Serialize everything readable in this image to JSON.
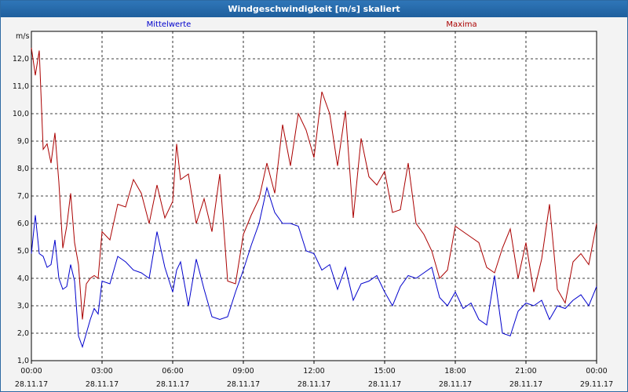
{
  "window": {
    "title": "Windgeschwindigkeit [m/s] skaliert"
  },
  "chart_data": {
    "type": "line",
    "ylabel": "m/s",
    "ylim": [
      1.0,
      13.0
    ],
    "yticks": [
      "1,0",
      "2,0",
      "3,0",
      "4,0",
      "5,0",
      "6,0",
      "7,0",
      "8,0",
      "9,0",
      "10,0",
      "11,0",
      "12,0"
    ],
    "xticks": [
      {
        "time": "00:00",
        "date": "28.11.17"
      },
      {
        "time": "03:00",
        "date": "28.11.17"
      },
      {
        "time": "06:00",
        "date": "28.11.17"
      },
      {
        "time": "09:00",
        "date": "28.11.17"
      },
      {
        "time": "12:00",
        "date": "28.11.17"
      },
      {
        "time": "15:00",
        "date": "28.11.17"
      },
      {
        "time": "18:00",
        "date": "28.11.17"
      },
      {
        "time": "21:00",
        "date": "28.11.17"
      },
      {
        "time": "00:00",
        "date": "29.11.17"
      }
    ],
    "grid": true,
    "x_start": "28.11.17 00:00",
    "x_end": "29.11.17 00:00",
    "series": [
      {
        "name": "Mittelwerte",
        "color": "#0000cc",
        "x": [
          "00:00",
          "00:10",
          "00:20",
          "00:30",
          "00:40",
          "00:50",
          "01:00",
          "01:10",
          "01:20",
          "01:30",
          "01:40",
          "01:50",
          "02:00",
          "02:10",
          "02:20",
          "02:30",
          "02:40",
          "02:50",
          "03:00",
          "03:20",
          "03:40",
          "04:00",
          "04:20",
          "04:40",
          "05:00",
          "05:20",
          "05:40",
          "06:00",
          "06:10",
          "06:20",
          "06:40",
          "07:00",
          "07:20",
          "07:40",
          "08:00",
          "08:20",
          "08:40",
          "09:00",
          "09:20",
          "09:40",
          "10:00",
          "10:20",
          "10:40",
          "11:00",
          "11:20",
          "11:40",
          "12:00",
          "12:20",
          "12:40",
          "13:00",
          "13:20",
          "13:40",
          "14:00",
          "14:20",
          "14:40",
          "15:00",
          "15:20",
          "15:40",
          "16:00",
          "16:20",
          "16:40",
          "17:00",
          "17:20",
          "17:40",
          "18:00",
          "18:20",
          "18:40",
          "19:00",
          "19:20",
          "19:40",
          "20:00",
          "20:20",
          "20:40",
          "21:00",
          "21:20",
          "21:40",
          "22:00",
          "22:20",
          "22:40",
          "23:00",
          "23:20",
          "23:40",
          "00:00"
        ],
        "values": [
          4.9,
          6.3,
          4.9,
          4.8,
          4.4,
          4.5,
          5.4,
          4.0,
          3.6,
          3.7,
          4.5,
          3.9,
          1.9,
          1.5,
          2.0,
          2.5,
          2.9,
          2.7,
          3.9,
          3.8,
          4.8,
          4.6,
          4.3,
          4.2,
          4.0,
          5.7,
          4.4,
          3.5,
          4.3,
          4.6,
          3.0,
          4.7,
          3.6,
          2.6,
          2.5,
          2.6,
          3.5,
          4.3,
          5.2,
          6.0,
          7.3,
          6.4,
          6.0,
          6.0,
          5.9,
          5.0,
          4.9,
          4.3,
          4.5,
          3.6,
          4.4,
          3.2,
          3.8,
          3.9,
          4.1,
          3.5,
          3.0,
          3.7,
          4.1,
          4.0,
          4.2,
          4.4,
          3.3,
          3.0,
          3.5,
          2.9,
          3.1,
          2.5,
          2.3,
          4.1,
          2.0,
          1.9,
          2.8,
          3.1,
          3.0,
          3.2,
          2.5,
          3.0,
          2.9,
          3.2,
          3.4,
          3.0,
          3.7
        ]
      },
      {
        "name": "Maxima",
        "color": "#aa0000",
        "x": [
          "00:00",
          "00:10",
          "00:20",
          "00:30",
          "00:40",
          "00:50",
          "01:00",
          "01:10",
          "01:20",
          "01:30",
          "01:40",
          "01:50",
          "02:00",
          "02:10",
          "02:20",
          "02:30",
          "02:40",
          "02:50",
          "03:00",
          "03:20",
          "03:40",
          "04:00",
          "04:20",
          "04:40",
          "05:00",
          "05:20",
          "05:40",
          "06:00",
          "06:10",
          "06:20",
          "06:40",
          "07:00",
          "07:20",
          "07:40",
          "08:00",
          "08:20",
          "08:40",
          "09:00",
          "09:20",
          "09:40",
          "10:00",
          "10:20",
          "10:40",
          "11:00",
          "11:20",
          "11:40",
          "12:00",
          "12:20",
          "12:40",
          "13:00",
          "13:20",
          "13:40",
          "14:00",
          "14:20",
          "14:40",
          "15:00",
          "15:20",
          "15:40",
          "16:00",
          "16:20",
          "16:40",
          "17:00",
          "17:20",
          "17:40",
          "18:00",
          "18:20",
          "18:40",
          "19:00",
          "19:20",
          "19:40",
          "20:00",
          "20:20",
          "20:40",
          "21:00",
          "21:20",
          "21:40",
          "22:00",
          "22:20",
          "22:40",
          "23:00",
          "23:20",
          "23:40",
          "00:00"
        ],
        "values": [
          12.4,
          11.4,
          12.3,
          8.7,
          8.9,
          8.2,
          9.3,
          7.5,
          5.1,
          5.9,
          7.1,
          5.3,
          4.5,
          2.5,
          3.8,
          4.0,
          4.1,
          4.0,
          5.7,
          5.4,
          6.7,
          6.6,
          7.6,
          7.1,
          6.0,
          7.4,
          6.2,
          6.8,
          8.9,
          7.6,
          7.8,
          6.0,
          6.9,
          5.7,
          7.8,
          3.9,
          3.8,
          5.6,
          6.3,
          6.9,
          8.2,
          7.1,
          9.6,
          8.1,
          10.0,
          9.4,
          8.4,
          10.8,
          10.0,
          8.1,
          10.1,
          6.2,
          9.1,
          7.7,
          7.4,
          7.9,
          6.4,
          6.5,
          8.2,
          6.0,
          5.6,
          5.0,
          4.0,
          4.3,
          5.9,
          5.7,
          5.5,
          5.3,
          4.4,
          4.2,
          5.1,
          5.8,
          4.0,
          5.3,
          3.5,
          4.7,
          6.7,
          3.6,
          3.1,
          4.6,
          4.9,
          4.5,
          6.0
        ]
      }
    ]
  }
}
